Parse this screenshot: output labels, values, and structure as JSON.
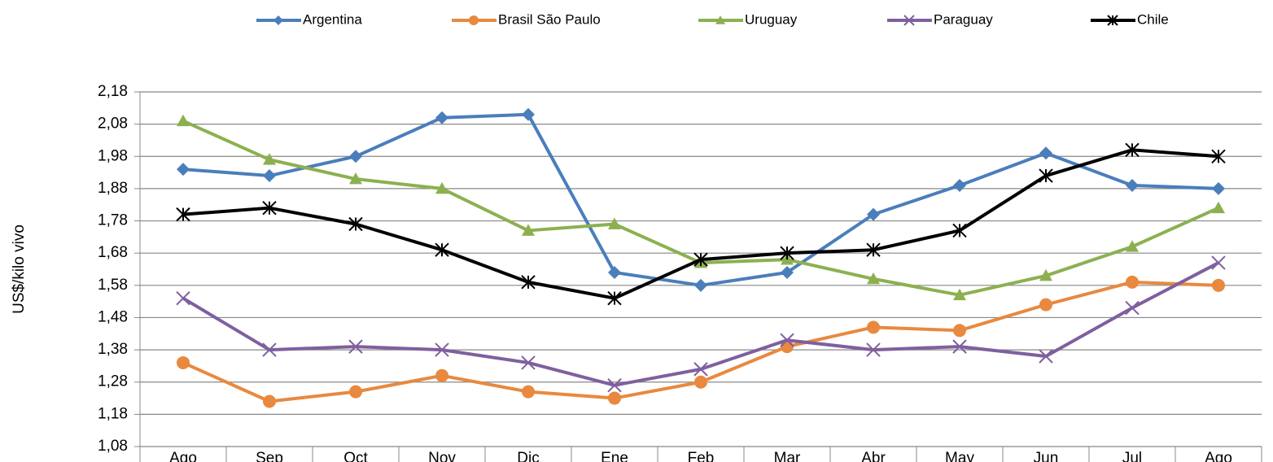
{
  "chart_data": {
    "type": "line",
    "y_label": "US$/kilo vivo",
    "categories": [
      "Ago",
      "Sep",
      "Oct",
      "Nov",
      "Dic",
      "Ene",
      "Feb",
      "Mar",
      "Abr",
      "May",
      "Jun",
      "Jul",
      "Ago"
    ],
    "series": [
      {
        "name": "Argentina",
        "color": "#4a7ebb",
        "marker": "diamond",
        "values": [
          1.94,
          1.92,
          1.98,
          2.1,
          2.11,
          1.62,
          1.58,
          1.62,
          1.8,
          1.89,
          1.99,
          1.89,
          1.88
        ]
      },
      {
        "name": "Brasil São Paulo",
        "color": "#e8893f",
        "marker": "circle",
        "values": [
          1.34,
          1.22,
          1.25,
          1.3,
          1.25,
          1.23,
          1.28,
          1.39,
          1.45,
          1.44,
          1.52,
          1.59,
          1.58
        ]
      },
      {
        "name": "Uruguay",
        "color": "#8cb050",
        "marker": "triangle",
        "values": [
          2.09,
          1.97,
          1.91,
          1.88,
          1.75,
          1.77,
          1.65,
          1.66,
          1.6,
          1.55,
          1.61,
          1.7,
          1.82
        ]
      },
      {
        "name": "Paraguay",
        "color": "#7f5f9f",
        "marker": "x",
        "values": [
          1.54,
          1.38,
          1.39,
          1.38,
          1.34,
          1.27,
          1.32,
          1.41,
          1.38,
          1.39,
          1.36,
          1.51,
          1.65
        ]
      },
      {
        "name": "Chile",
        "color": "#000000",
        "marker": "star",
        "values": [
          1.8,
          1.82,
          1.77,
          1.69,
          1.59,
          1.54,
          1.66,
          1.68,
          1.69,
          1.75,
          1.92,
          2.0,
          1.98
        ]
      }
    ],
    "ylim": [
      1.08,
      2.18
    ],
    "yticks": [
      {
        "value": 1.08,
        "label": "1,08"
      },
      {
        "value": 1.18,
        "label": "1,18"
      },
      {
        "value": 1.28,
        "label": "1,28"
      },
      {
        "value": 1.38,
        "label": "1,38"
      },
      {
        "value": 1.48,
        "label": "1,48"
      },
      {
        "value": 1.58,
        "label": "1,58"
      },
      {
        "value": 1.68,
        "label": "1,68"
      },
      {
        "value": 1.78,
        "label": "1,78"
      },
      {
        "value": 1.88,
        "label": "1,88"
      },
      {
        "value": 1.98,
        "label": "1,98"
      },
      {
        "value": 2.08,
        "label": "2,08"
      },
      {
        "value": 2.18,
        "label": "2,18"
      }
    ],
    "grid": true
  }
}
